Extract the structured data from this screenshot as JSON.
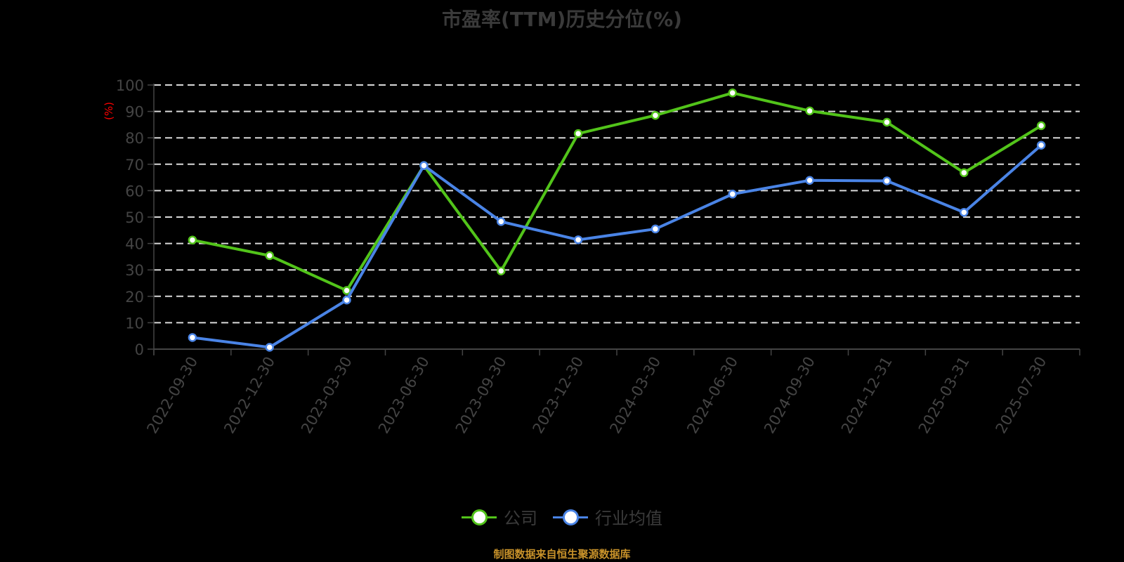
{
  "title": "市盈率(TTM)历史分位(%)",
  "y_axis_unit": "(%)",
  "source_note": "制图数据来自恒生聚源数据库",
  "legend": [
    {
      "name": "公司",
      "color": "#52c41a"
    },
    {
      "name": "行业均值",
      "color": "#4a84e6"
    }
  ],
  "chart_data": {
    "type": "line",
    "title": "市盈率(TTM)历史分位(%)",
    "xlabel": "",
    "ylabel": "(%)",
    "ylim": [
      0,
      100
    ],
    "yticks": [
      0,
      10,
      20,
      30,
      40,
      50,
      60,
      70,
      80,
      90,
      100
    ],
    "grid": true,
    "legend_position": "bottom",
    "categories": [
      "2022-09-30",
      "2022-12-30",
      "2023-03-30",
      "2023-06-30",
      "2023-09-30",
      "2023-12-30",
      "2024-03-30",
      "2024-06-30",
      "2024-09-30",
      "2024-12-31",
      "2025-03-31",
      "2025-07-30"
    ],
    "series": [
      {
        "name": "公司",
        "color": "#52c41a",
        "values": [
          41.3,
          35.4,
          22.2,
          69.5,
          29.6,
          81.6,
          88.5,
          97.0,
          90.2,
          85.9,
          66.8,
          84.6
        ]
      },
      {
        "name": "行业均值",
        "color": "#4a84e6",
        "values": [
          4.4,
          0.7,
          18.6,
          69.5,
          48.3,
          41.4,
          45.5,
          58.7,
          63.9,
          63.7,
          51.8,
          77.2
        ]
      }
    ]
  }
}
